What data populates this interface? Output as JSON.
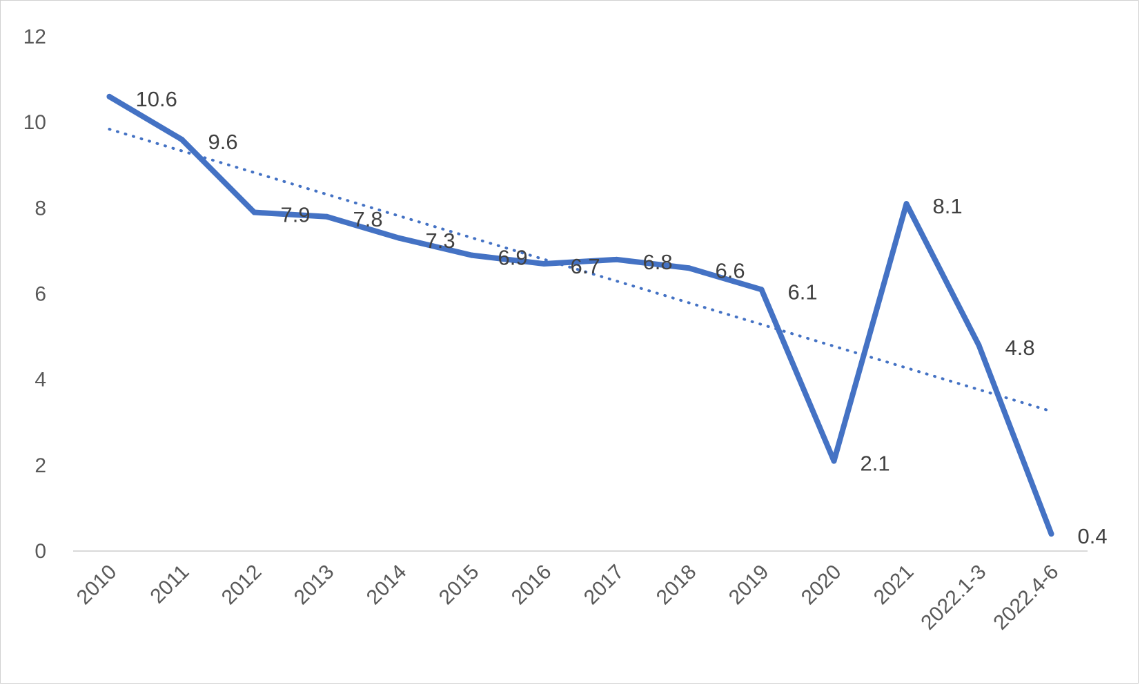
{
  "chart_data": {
    "type": "line",
    "categories": [
      "2010",
      "2011",
      "2012",
      "2013",
      "2014",
      "2015",
      "2016",
      "2017",
      "2018",
      "2019",
      "2020",
      "2021",
      "2022.1-3",
      "2022.4-6"
    ],
    "series": [
      {
        "values": [
          10.6,
          9.6,
          7.9,
          7.8,
          7.3,
          6.9,
          6.7,
          6.8,
          6.6,
          6.1,
          2.1,
          8.1,
          4.8,
          0.4
        ],
        "color": "#4472c4",
        "data_labels": [
          "10.6",
          "9.6",
          "7.9",
          "7.8",
          "7.3",
          "6.9",
          "6.7",
          "6.8",
          "6.6",
          "6.1",
          "2.1",
          "8.1",
          "4.8",
          "0.4"
        ]
      }
    ],
    "trendline": {
      "type": "linear",
      "style": "dotted",
      "color": "#4472c4"
    },
    "ylim": [
      0,
      12
    ],
    "yticks": [
      0,
      2,
      4,
      6,
      8,
      10,
      12
    ],
    "ytick_labels": [
      "0",
      "2",
      "4",
      "6",
      "8",
      "10",
      "12"
    ],
    "title": "",
    "xlabel": "",
    "ylabel": "",
    "grid": false,
    "legend": "none"
  }
}
